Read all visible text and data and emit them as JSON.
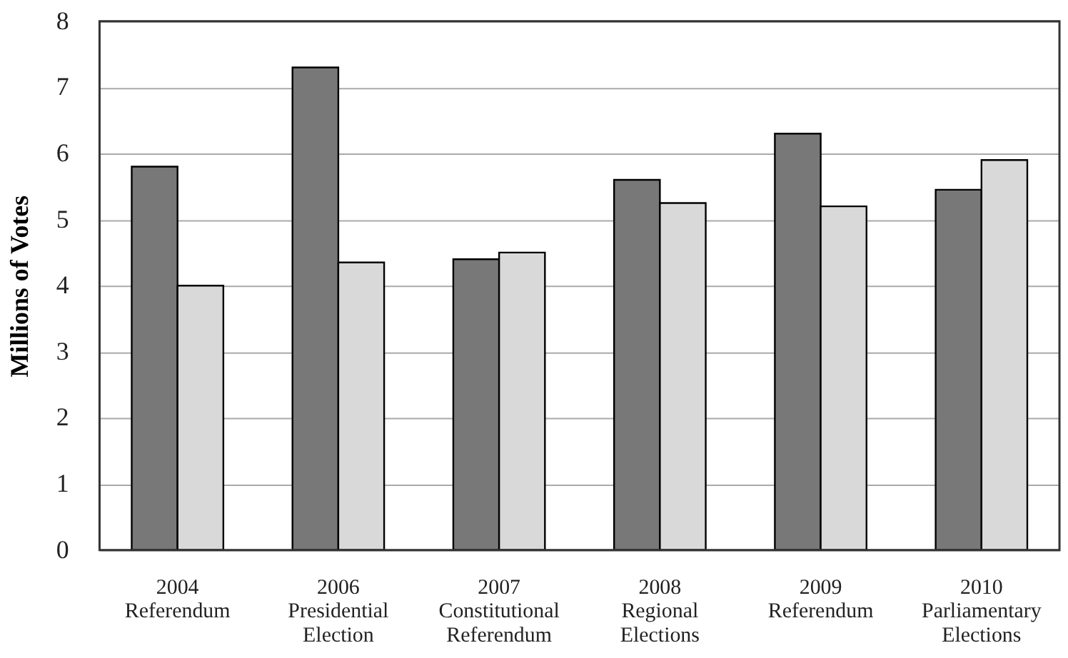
{
  "chart_data": {
    "type": "bar",
    "ylabel": "Millions of Votes",
    "categories": [
      "2004\nReferendum",
      "2006\nPresidential\nElection",
      "2007\nConstitutional\nReferendum",
      "2008\nRegional\nElections",
      "2009\nReferendum",
      "2010\nParliamentary\nElections"
    ],
    "series": [
      {
        "color": "#787878",
        "values": [
          5.8,
          7.3,
          4.4,
          5.6,
          6.3,
          5.45
        ]
      },
      {
        "color": "#d9d9d9",
        "values": [
          4.0,
          4.35,
          4.5,
          5.25,
          5.2,
          5.9
        ]
      }
    ],
    "ylim": [
      0,
      8
    ],
    "yticks": [
      0,
      1,
      2,
      3,
      4,
      5,
      6,
      7,
      8
    ],
    "grid": "y",
    "legend": false
  }
}
